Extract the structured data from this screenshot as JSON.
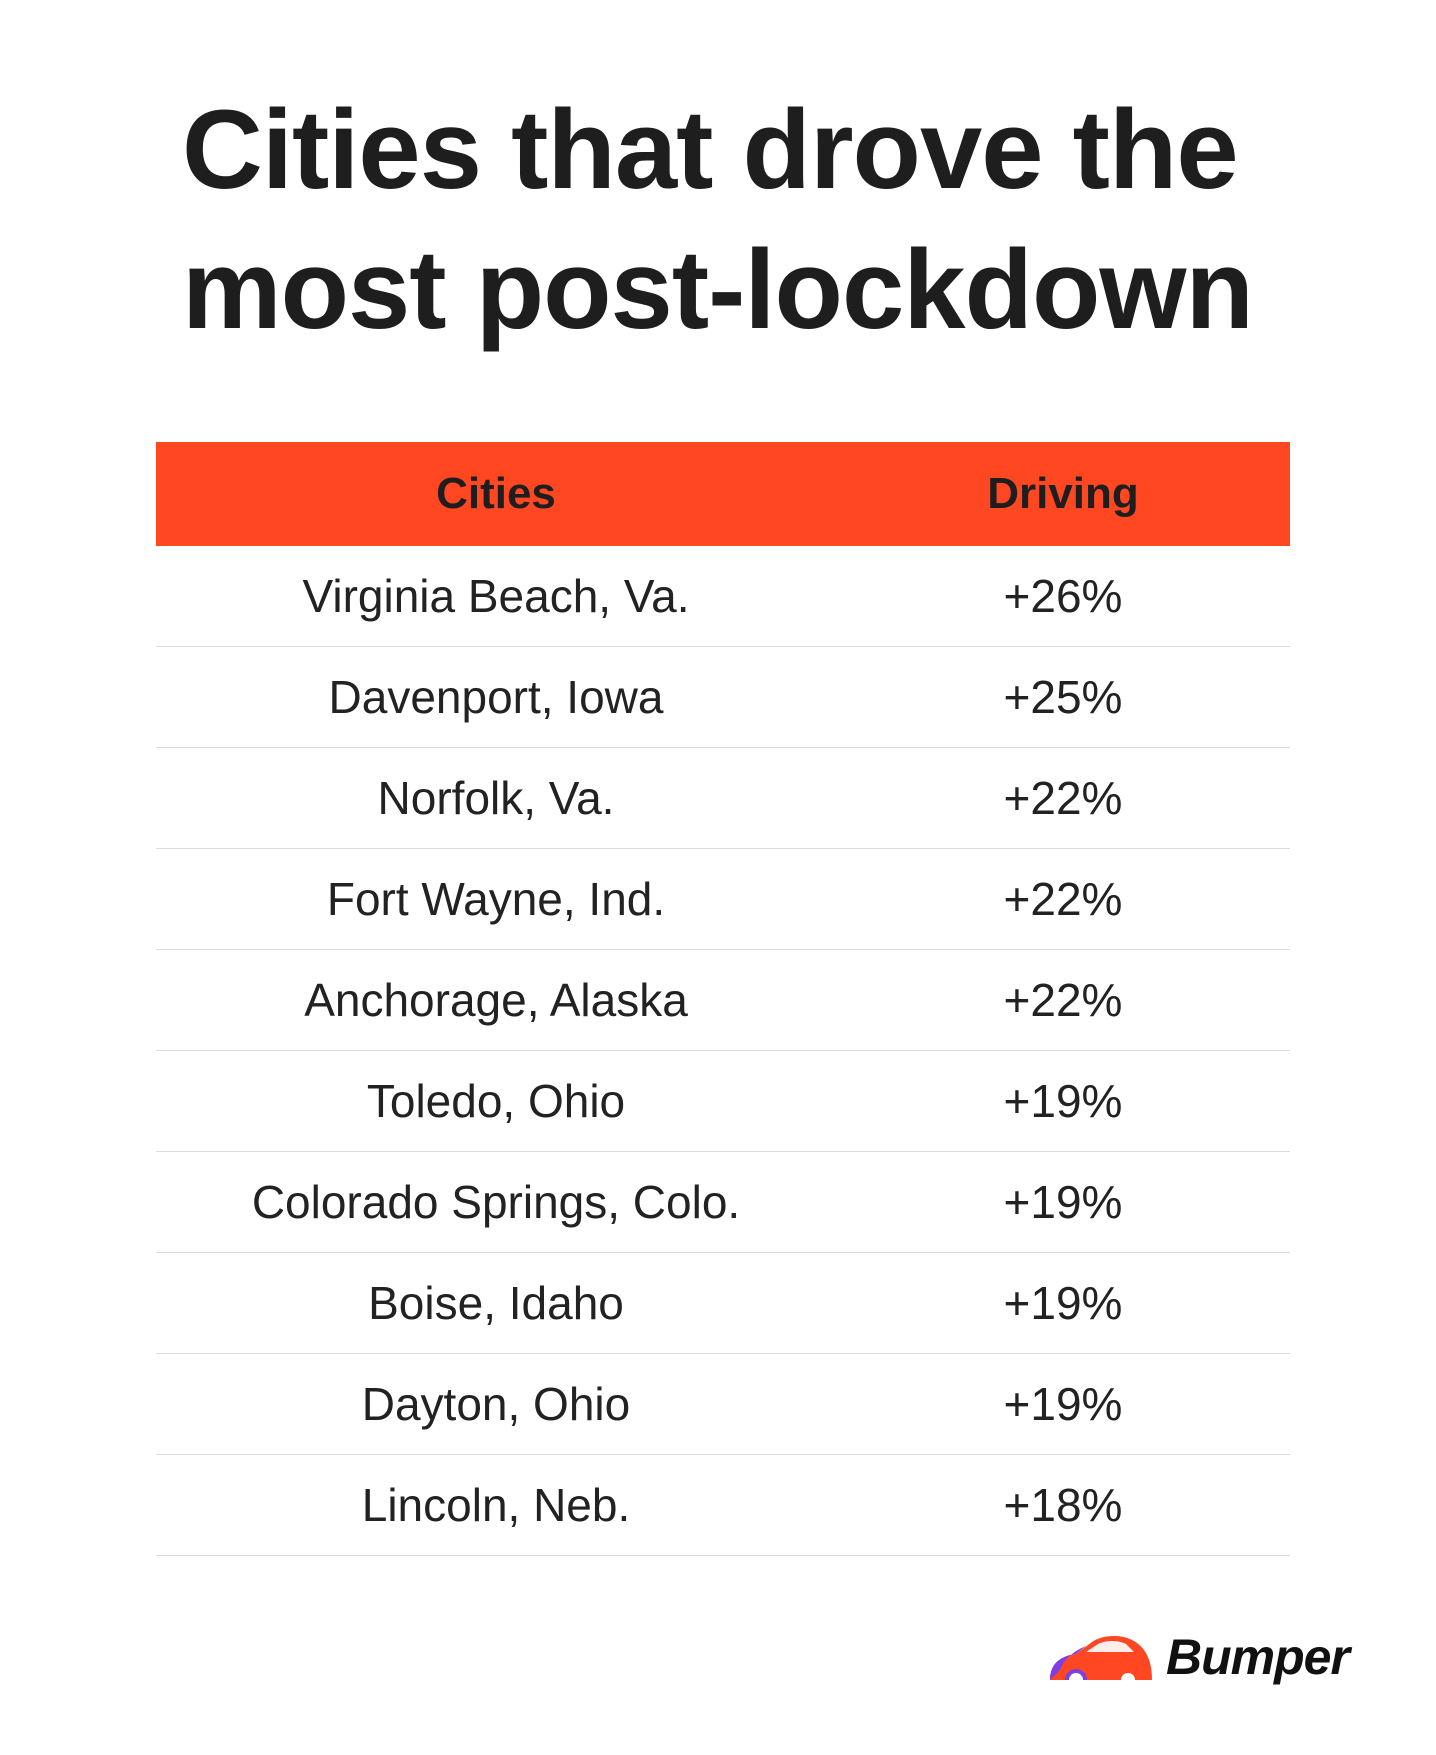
{
  "title": "Cities that drove the most post-lockdown",
  "chart_data": {
    "type": "table",
    "columns": [
      "Cities",
      "Driving"
    ],
    "rows": [
      {
        "city": "Virginia Beach, Va.",
        "driving": "+26%",
        "value": 26
      },
      {
        "city": "Davenport, Iowa",
        "driving": "+25%",
        "value": 25
      },
      {
        "city": "Norfolk, Va.",
        "driving": "+22%",
        "value": 22
      },
      {
        "city": "Fort Wayne, Ind.",
        "driving": "+22%",
        "value": 22
      },
      {
        "city": "Anchorage, Alaska",
        "driving": "+22%",
        "value": 22
      },
      {
        "city": "Toledo, Ohio",
        "driving": "+19%",
        "value": 19
      },
      {
        "city": "Colorado Springs, Colo.",
        "driving": "+19%",
        "value": 19
      },
      {
        "city": "Boise, Idaho",
        "driving": "+19%",
        "value": 19
      },
      {
        "city": "Dayton, Ohio",
        "driving": "+19%",
        "value": 19
      },
      {
        "city": "Lincoln, Neb.",
        "driving": "+18%",
        "value": 18
      }
    ]
  },
  "brand": {
    "name": "Bumper",
    "logo_icon": "car-icon"
  },
  "colors": {
    "header_bg": "#ff4722",
    "text": "#1e1e1e",
    "divider": "#dcdcdc",
    "logo_red": "#ff4722",
    "logo_purple": "#7b3fe4"
  }
}
